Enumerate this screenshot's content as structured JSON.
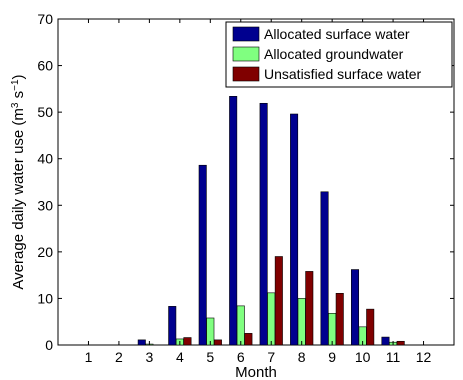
{
  "chart_data": {
    "type": "bar",
    "title": "",
    "xlabel": "Month",
    "ylabel": "Average daily water use (m³ s⁻¹)",
    "ylabel_parts": {
      "main": "Average daily water use (m",
      "sup1": "3",
      "mid": " s",
      "sup2": "−1",
      "end": ")"
    },
    "categories": [
      "1",
      "2",
      "3",
      "4",
      "5",
      "6",
      "7",
      "8",
      "9",
      "10",
      "11",
      "12"
    ],
    "ylim": [
      0,
      70
    ],
    "yticks": [
      "0",
      "10",
      "20",
      "30",
      "40",
      "50",
      "60",
      "70"
    ],
    "grid": false,
    "legend_position": "top-right",
    "series": [
      {
        "name": "Allocated surface water",
        "color": "#00008F",
        "values": [
          0,
          0,
          1.1,
          8.3,
          38.6,
          53.4,
          51.9,
          49.6,
          32.9,
          16.2,
          1.7,
          0
        ]
      },
      {
        "name": "Allocated groundwater",
        "color": "#80FF80",
        "values": [
          0,
          0,
          0.2,
          1.3,
          5.8,
          8.4,
          11.2,
          10.0,
          6.8,
          3.9,
          0.6,
          0
        ]
      },
      {
        "name": "Unsatisfied surface water",
        "color": "#800000",
        "values": [
          0,
          0,
          0,
          1.6,
          1.1,
          2.5,
          19.0,
          15.8,
          11.1,
          7.7,
          0.8,
          0
        ]
      }
    ]
  }
}
